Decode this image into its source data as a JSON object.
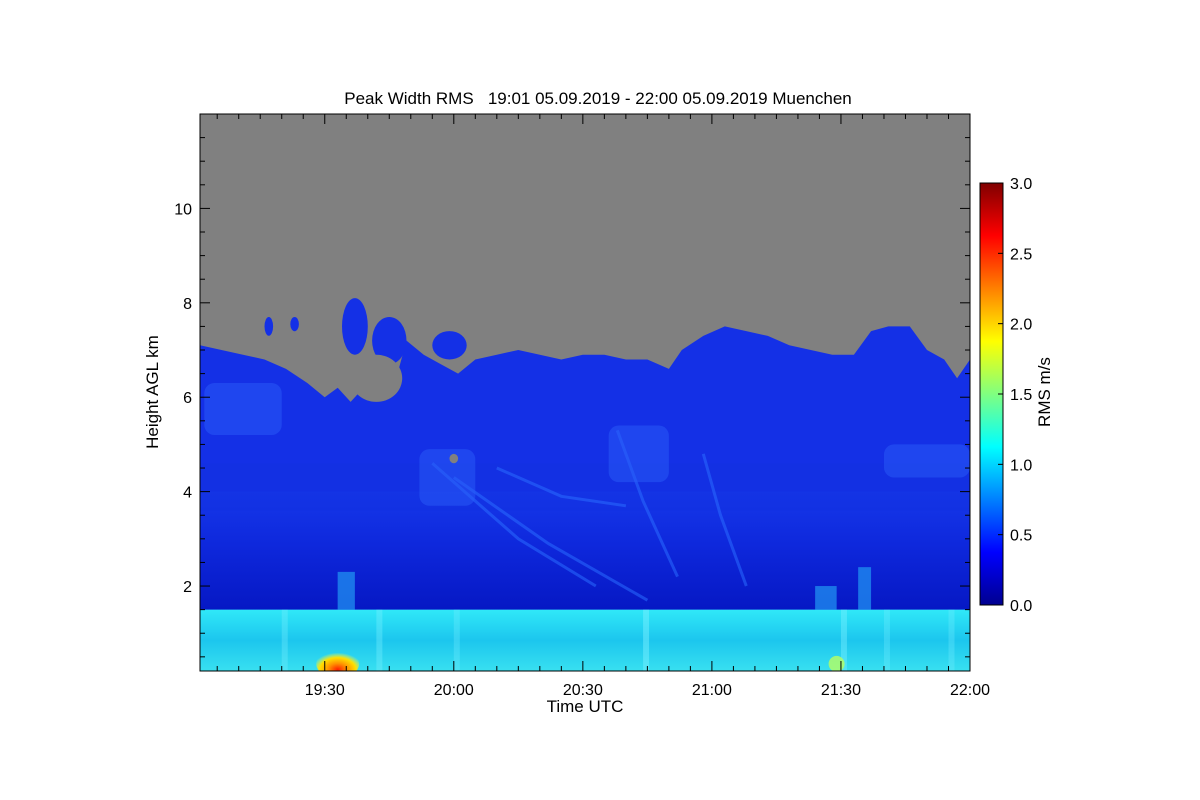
{
  "chart_data": {
    "type": "heatmap",
    "title": "Peak Width RMS   19:01 05.09.2019 - 22:00 05.09.2019 Muenchen",
    "xlabel": "Time UTC",
    "ylabel": "Height AGL km",
    "xlim_minutes_utc": [
      1141,
      1320
    ],
    "ylim_km": [
      0.2,
      12.0
    ],
    "x_ticks": [
      {
        "value": 1170,
        "label": "19:30"
      },
      {
        "value": 1200,
        "label": "20:00"
      },
      {
        "value": 1230,
        "label": "20:30"
      },
      {
        "value": 1260,
        "label": "21:00"
      },
      {
        "value": 1290,
        "label": "21:30"
      },
      {
        "value": 1320,
        "label": "22:00"
      }
    ],
    "y_ticks": [
      {
        "value": 2,
        "label": "2"
      },
      {
        "value": 4,
        "label": "4"
      },
      {
        "value": 6,
        "label": "6"
      },
      {
        "value": 8,
        "label": "8"
      },
      {
        "value": 10,
        "label": "10"
      }
    ],
    "no_data_color": "#808080",
    "colorbar": {
      "label": "RMS m/s",
      "range": [
        0.0,
        3.0
      ],
      "ticks": [
        {
          "value": 0.0,
          "label": "0.0"
        },
        {
          "value": 0.5,
          "label": "0.5"
        },
        {
          "value": 1.0,
          "label": "1.0"
        },
        {
          "value": 1.5,
          "label": "1.5"
        },
        {
          "value": 2.0,
          "label": "2.0"
        },
        {
          "value": 2.5,
          "label": "2.5"
        },
        {
          "value": 3.0,
          "label": "3.0"
        }
      ],
      "colormap": "jet",
      "colors": [
        "#00008f",
        "#0000ff",
        "#0080ff",
        "#00ffff",
        "#80ff80",
        "#ffff00",
        "#ff8000",
        "#ff0000",
        "#800000"
      ]
    },
    "regions": [
      {
        "name": "boundary-layer",
        "height_km": [
          0.2,
          1.5
        ],
        "rms_ms": 1.0,
        "color": "#18c8f0"
      },
      {
        "name": "free-troposphere",
        "height_km": [
          1.5,
          4.0
        ],
        "rms_ms": 0.3,
        "color": "#0a1ed2"
      },
      {
        "name": "upper-cloud-layer",
        "height_km": [
          4.0,
          7.0
        ],
        "rms_ms": 0.4,
        "color": "#1430e6"
      },
      {
        "name": "surface-peak",
        "time_minutes_utc": [
          1168,
          1178
        ],
        "height_km": [
          0.2,
          0.6
        ],
        "rms_ms": 2.2,
        "color": "#ffd000"
      }
    ],
    "signal_top_km": [
      {
        "t": 1141,
        "h": 7.1
      },
      {
        "t": 1146,
        "h": 7.0
      },
      {
        "t": 1151,
        "h": 6.9
      },
      {
        "t": 1156,
        "h": 6.8
      },
      {
        "t": 1161,
        "h": 6.6
      },
      {
        "t": 1166,
        "h": 6.3
      },
      {
        "t": 1170,
        "h": 6.0
      },
      {
        "t": 1173,
        "h": 6.2
      },
      {
        "t": 1176,
        "h": 5.9
      },
      {
        "t": 1180,
        "h": 6.3
      },
      {
        "t": 1183,
        "h": 6.0
      },
      {
        "t": 1186,
        "h": 6.2
      },
      {
        "t": 1189,
        "h": 7.2
      },
      {
        "t": 1193,
        "h": 6.9
      },
      {
        "t": 1197,
        "h": 6.7
      },
      {
        "t": 1201,
        "h": 6.5
      },
      {
        "t": 1205,
        "h": 6.8
      },
      {
        "t": 1210,
        "h": 6.9
      },
      {
        "t": 1215,
        "h": 7.0
      },
      {
        "t": 1220,
        "h": 6.9
      },
      {
        "t": 1225,
        "h": 6.8
      },
      {
        "t": 1230,
        "h": 6.9
      },
      {
        "t": 1235,
        "h": 6.9
      },
      {
        "t": 1240,
        "h": 6.8
      },
      {
        "t": 1245,
        "h": 6.8
      },
      {
        "t": 1250,
        "h": 6.6
      },
      {
        "t": 1253,
        "h": 7.0
      },
      {
        "t": 1258,
        "h": 7.3
      },
      {
        "t": 1263,
        "h": 7.5
      },
      {
        "t": 1268,
        "h": 7.4
      },
      {
        "t": 1273,
        "h": 7.3
      },
      {
        "t": 1278,
        "h": 7.1
      },
      {
        "t": 1283,
        "h": 7.0
      },
      {
        "t": 1288,
        "h": 6.9
      },
      {
        "t": 1293,
        "h": 6.9
      },
      {
        "t": 1297,
        "h": 7.4
      },
      {
        "t": 1301,
        "h": 7.5
      },
      {
        "t": 1306,
        "h": 7.5
      },
      {
        "t": 1310,
        "h": 7.0
      },
      {
        "t": 1314,
        "h": 6.8
      },
      {
        "t": 1317,
        "h": 6.4
      },
      {
        "t": 1320,
        "h": 6.8
      }
    ],
    "cloud_patches": [
      {
        "t": [
          1174,
          1180
        ],
        "h": [
          6.9,
          8.1
        ]
      },
      {
        "t": [
          1181,
          1189
        ],
        "h": [
          6.7,
          7.7
        ]
      },
      {
        "t": [
          1156,
          1158
        ],
        "h": [
          7.3,
          7.7
        ]
      },
      {
        "t": [
          1162,
          1164
        ],
        "h": [
          7.4,
          7.7
        ]
      },
      {
        "t": [
          1195,
          1203
        ],
        "h": [
          6.8,
          7.4
        ]
      }
    ]
  }
}
